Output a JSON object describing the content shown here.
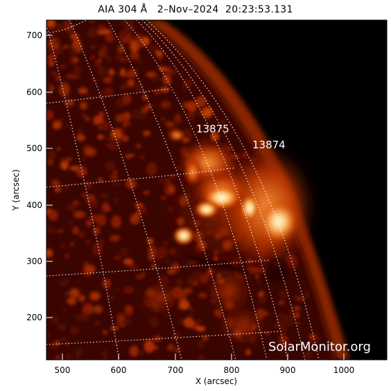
{
  "title": "AIA 304 Å   2–Nov–2024  20:23:53.131",
  "x_axis": {
    "label": "X (arcsec)",
    "ticks": [
      "500",
      "600",
      "700",
      "800",
      "900",
      "1000"
    ]
  },
  "y_axis": {
    "label": "Y (arcsec)",
    "ticks": [
      "200",
      "300",
      "400",
      "500",
      "600",
      "700"
    ]
  },
  "active_regions": [
    {
      "number": "13875",
      "x_arcsec": 765,
      "y_arcsec": 530
    },
    {
      "number": "13874",
      "x_arcsec": 870,
      "y_arcsec": 502
    }
  ],
  "watermark": "SolarMonitor.org",
  "colors": {
    "background": "#000000",
    "emission_dark": "#5a0c00",
    "emission_mid": "#c43a00",
    "emission_bright": "#ff9a3a",
    "emission_peak": "#fff6e0",
    "grid": "#ffffff",
    "text_on_image": "#ffffff"
  }
}
